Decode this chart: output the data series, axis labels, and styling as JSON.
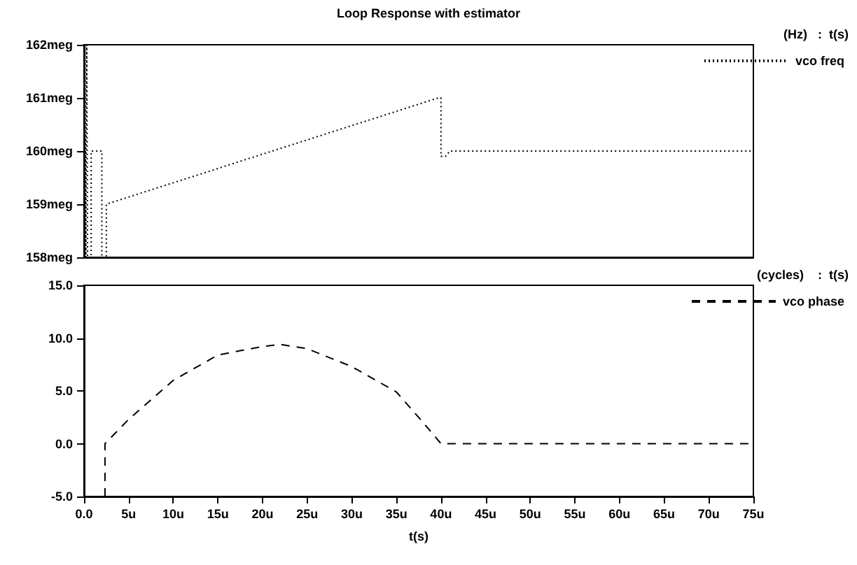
{
  "chart_data": [
    {
      "type": "line",
      "title": "Loop Response with estimator",
      "annotations": [
        "(Hz)   :  t(s)"
      ],
      "legend": "top right",
      "grid": false,
      "marker": "none",
      "tick_labels": "y",
      "xlim": [
        0,
        75
      ],
      "ylim": [
        158,
        162
      ],
      "yticks": [
        {
          "value": 158,
          "label": "158meg"
        },
        {
          "value": 159,
          "label": "159meg"
        },
        {
          "value": 160,
          "label": "160meg"
        },
        {
          "value": 161,
          "label": "161meg"
        },
        {
          "value": 162,
          "label": "162meg"
        }
      ],
      "series": [
        {
          "name": "vco freq",
          "color": "#000000",
          "line_style": "dotted",
          "x": [
            0,
            0.1,
            0.2,
            0.3,
            0.4,
            0.8,
            0.8,
            2.0,
            2.0,
            2.5,
            2.5,
            39.7,
            40.0,
            40.0,
            40.5,
            41,
            75
          ],
          "values": [
            158,
            162,
            158,
            162,
            158,
            158,
            160,
            160,
            158,
            158,
            159,
            161,
            161,
            159.9,
            159.9,
            160,
            160
          ]
        }
      ]
    },
    {
      "type": "line",
      "annotations": [
        "(cycles)    :  t(s)"
      ],
      "xlabel": "t(s)",
      "legend": "top right",
      "grid": false,
      "marker": "none",
      "xlim": [
        0,
        75
      ],
      "xticks": [
        {
          "value": 0,
          "label": "0.0"
        },
        {
          "value": 5,
          "label": "5u"
        },
        {
          "value": 10,
          "label": "10u"
        },
        {
          "value": 15,
          "label": "15u"
        },
        {
          "value": 20,
          "label": "20u"
        },
        {
          "value": 25,
          "label": "25u"
        },
        {
          "value": 30,
          "label": "30u"
        },
        {
          "value": 35,
          "label": "35u"
        },
        {
          "value": 40,
          "label": "40u"
        },
        {
          "value": 45,
          "label": "45u"
        },
        {
          "value": 50,
          "label": "50u"
        },
        {
          "value": 55,
          "label": "55u"
        },
        {
          "value": 60,
          "label": "60u"
        },
        {
          "value": 65,
          "label": "65u"
        },
        {
          "value": 70,
          "label": "70u"
        },
        {
          "value": 75,
          "label": "75u"
        }
      ],
      "ylim": [
        -5,
        15
      ],
      "yticks": [
        {
          "value": -5,
          "label": "-5.0"
        },
        {
          "value": 0,
          "label": "0.0"
        },
        {
          "value": 5,
          "label": "5.0"
        },
        {
          "value": 10,
          "label": "10.0"
        },
        {
          "value": 15,
          "label": "15.0"
        }
      ],
      "series": [
        {
          "name": "vco phase",
          "color": "#000000",
          "line_style": "dashed",
          "x": [
            2.35,
            2.35,
            5,
            10,
            15,
            20,
            22,
            25,
            30,
            35,
            38,
            40,
            75
          ],
          "values": [
            -5,
            0,
            2.3,
            6.0,
            8.4,
            9.2,
            9.4,
            9.0,
            7.3,
            4.9,
            2.0,
            0,
            0
          ]
        }
      ]
    }
  ]
}
